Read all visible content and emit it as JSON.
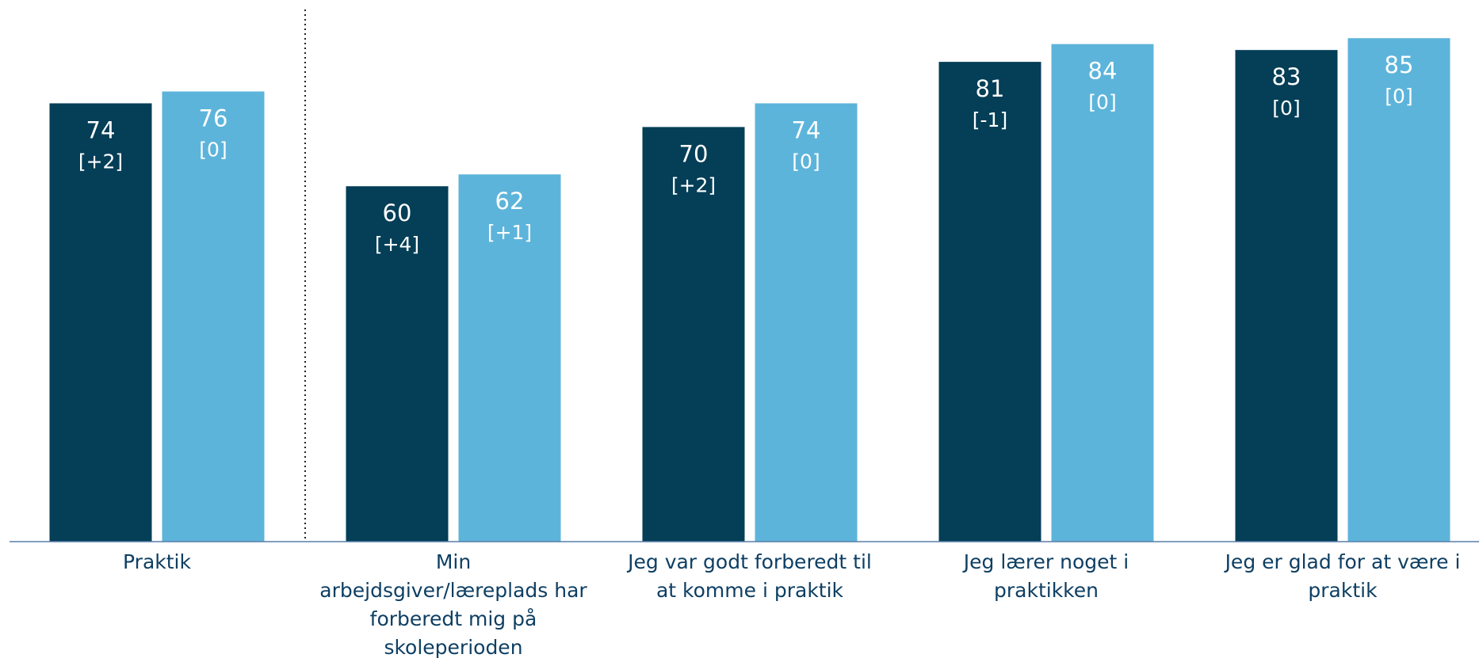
{
  "chart_data": {
    "type": "bar",
    "title": "",
    "xlabel": "",
    "ylabel": "",
    "ylim": [
      0,
      100
    ],
    "grid": false,
    "categories": [
      "Praktik",
      "Min arbejdsgiver/læreplads har forberedt mig på skoleperioden",
      "Jeg var godt forberedt til at komme i praktik",
      "Jeg lærer noget i praktikken",
      "Jeg er glad for at være i praktik"
    ],
    "series": [
      {
        "color": "#043e57",
        "values": [
          74,
          60,
          70,
          81,
          83
        ],
        "value_labels": [
          "74",
          "60",
          "70",
          "81",
          "83"
        ],
        "change_labels": [
          "[+2]",
          "[+4]",
          "[+2]",
          "[-1]",
          "[0]"
        ]
      },
      {
        "color": "#5db4da",
        "values": [
          76,
          62,
          74,
          84,
          85
        ],
        "value_labels": [
          "76",
          "62",
          "74",
          "84",
          "85"
        ],
        "change_labels": [
          "[0]",
          "[+1]",
          "[0]",
          "[0]",
          "[0]"
        ]
      }
    ],
    "separator_after_category": 0
  }
}
